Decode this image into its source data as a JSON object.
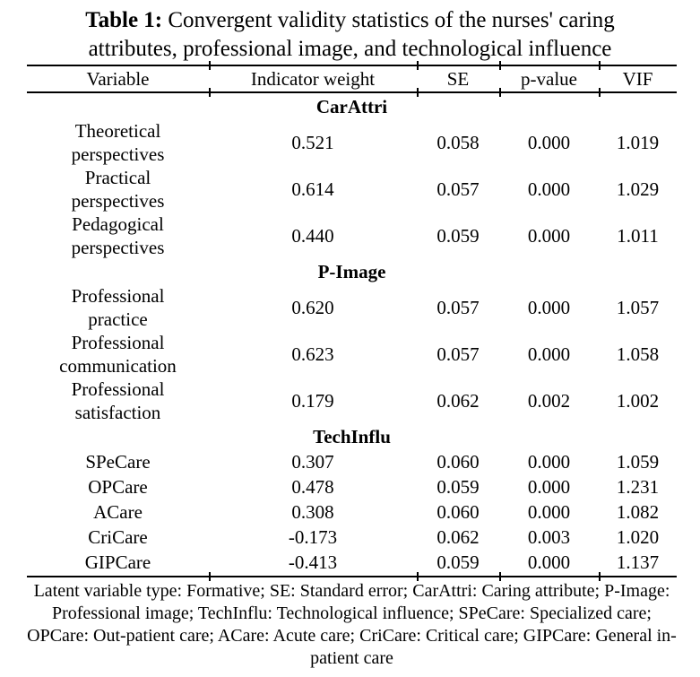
{
  "title": {
    "label": "Table 1:",
    "text": " Convergent validity statistics of the nurses' caring\nattributes, professional image, and technological influence"
  },
  "table": {
    "columns": [
      "Variable",
      "Indicator weight",
      "SE",
      "p-value",
      "VIF"
    ],
    "sections": [
      {
        "header": "CarAttri",
        "rows": [
          {
            "variable": "Theoretical\nperspectives",
            "indicator_weight": "0.521",
            "se": "0.058",
            "p_value": "0.000",
            "vif": "1.019"
          },
          {
            "variable": "Practical\nperspectives",
            "indicator_weight": "0.614",
            "se": "0.057",
            "p_value": "0.000",
            "vif": "1.029"
          },
          {
            "variable": "Pedagogical\nperspectives",
            "indicator_weight": "0.440",
            "se": "0.059",
            "p_value": "0.000",
            "vif": "1.011"
          }
        ]
      },
      {
        "header": "P-Image",
        "rows": [
          {
            "variable": "Professional\npractice",
            "indicator_weight": "0.620",
            "se": "0.057",
            "p_value": "0.000",
            "vif": "1.057"
          },
          {
            "variable": "Professional\ncommunication",
            "indicator_weight": "0.623",
            "se": "0.057",
            "p_value": "0.000",
            "vif": "1.058"
          },
          {
            "variable": "Professional\nsatisfaction",
            "indicator_weight": "0.179",
            "se": "0.062",
            "p_value": "0.002",
            "vif": "1.002"
          }
        ]
      },
      {
        "header": "TechInflu",
        "rows": [
          {
            "variable": "SPeCare",
            "indicator_weight": "0.307",
            "se": "0.060",
            "p_value": "0.000",
            "vif": "1.059"
          },
          {
            "variable": "OPCare",
            "indicator_weight": "0.478",
            "se": "0.059",
            "p_value": "0.000",
            "vif": "1.231"
          },
          {
            "variable": "ACare",
            "indicator_weight": "0.308",
            "se": "0.060",
            "p_value": "0.000",
            "vif": "1.082"
          },
          {
            "variable": "CriCare",
            "indicator_weight": "-0.173",
            "se": "0.062",
            "p_value": "0.003",
            "vif": "1.020"
          },
          {
            "variable": "GIPCare",
            "indicator_weight": "-0.413",
            "se": "0.059",
            "p_value": "0.000",
            "vif": "1.137"
          }
        ]
      }
    ]
  },
  "footnote": "Latent variable type: Formative; SE: Standard error; CarAttri: Caring attribute; P-Image:\nProfessional image; TechInflu: Technological influence; SPeCare: Specialized care;\nOPCare: Out-patient care; ACare: Acute care; CriCare: Critical care; GIPCare: General in-\npatient care",
  "colors": {
    "text": "#000000",
    "background": "#ffffff",
    "rule": "#000000"
  }
}
